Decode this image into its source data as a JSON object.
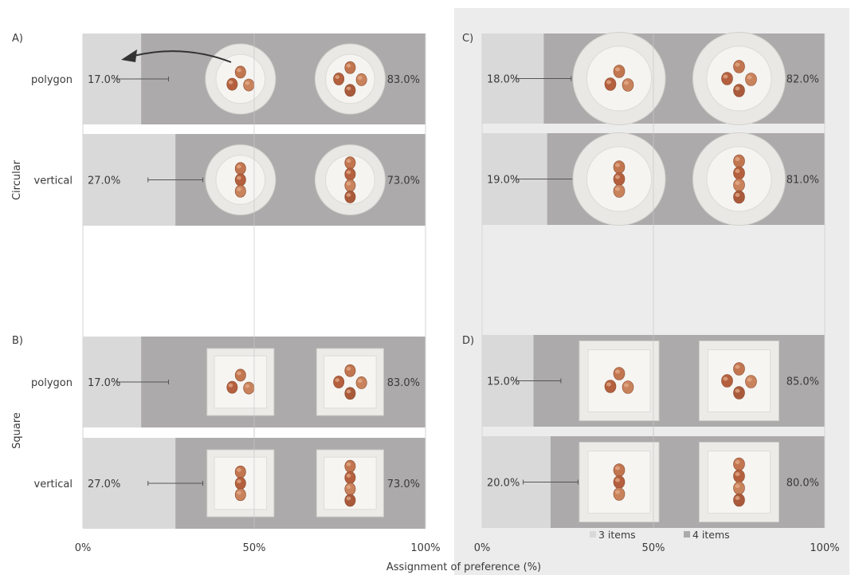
{
  "chart_data": [
    {
      "type": "bar",
      "panel_label": "A)",
      "group_label": "Circular",
      "categories": [
        "polygon",
        "vertical"
      ],
      "series": [
        {
          "name": "3 items",
          "values": [
            17.0,
            27.0
          ]
        },
        {
          "name": "4 items",
          "values": [
            83.0,
            73.0
          ]
        }
      ],
      "value_labels_left": [
        "17.0%",
        "27.0%"
      ],
      "value_labels_right": [
        "83.0%",
        "73.0%"
      ],
      "error_bar_ranges": [
        [
          10,
          25
        ],
        [
          19,
          35
        ]
      ],
      "plate_shape": "circle",
      "xlim": [
        0,
        100
      ]
    },
    {
      "type": "bar",
      "panel_label": "B)",
      "group_label": "Square",
      "categories": [
        "polygon",
        "vertical"
      ],
      "series": [
        {
          "name": "3 items",
          "values": [
            17.0,
            27.0
          ]
        },
        {
          "name": "4 items",
          "values": [
            83.0,
            73.0
          ]
        }
      ],
      "value_labels_left": [
        "17.0%",
        "27.0%"
      ],
      "value_labels_right": [
        "83.0%",
        "73.0%"
      ],
      "error_bar_ranges": [
        [
          10,
          25
        ],
        [
          19,
          35
        ]
      ],
      "plate_shape": "square",
      "xlim": [
        0,
        100
      ],
      "xticks": [
        "0%",
        "50%",
        "100%"
      ]
    },
    {
      "type": "bar",
      "panel_label": "C)",
      "categories": [
        "polygon",
        "vertical"
      ],
      "series": [
        {
          "name": "3 items",
          "values": [
            18.0,
            19.0
          ]
        },
        {
          "name": "4 items",
          "values": [
            82.0,
            81.0
          ]
        }
      ],
      "value_labels_left": [
        "18.0%",
        "19.0%"
      ],
      "value_labels_right": [
        "82.0%",
        "81.0%"
      ],
      "error_bar_ranges": [
        [
          10,
          26
        ],
        [
          10,
          27
        ]
      ],
      "plate_shape": "circle",
      "xlim": [
        0,
        100
      ]
    },
    {
      "type": "bar",
      "panel_label": "D)",
      "categories": [
        "polygon",
        "vertical"
      ],
      "series": [
        {
          "name": "3 items",
          "values": [
            15.0,
            20.0
          ]
        },
        {
          "name": "4 items",
          "values": [
            85.0,
            80.0
          ]
        }
      ],
      "value_labels_left": [
        "15.0%",
        "20.0%"
      ],
      "value_labels_right": [
        "85.0%",
        "80.0%"
      ],
      "error_bar_ranges": [
        [
          10,
          23
        ],
        [
          12,
          28
        ]
      ],
      "plate_shape": "square",
      "xlim": [
        0,
        100
      ],
      "xticks": [
        "0%",
        "50%",
        "100%"
      ]
    }
  ],
  "xlabel": "Assignment of preference (%)",
  "legend": [
    {
      "label": "3 items",
      "color": "#d9d9d9"
    },
    {
      "label": "4 items",
      "color": "#acaaab"
    }
  ],
  "colors": {
    "three_items": "#d9d9d9",
    "four_items": "#acaaab",
    "right_panel_bg": "#ececec",
    "plate": "#f2f1ee",
    "food": "#b86a45",
    "grid": "#c8c8c8"
  }
}
